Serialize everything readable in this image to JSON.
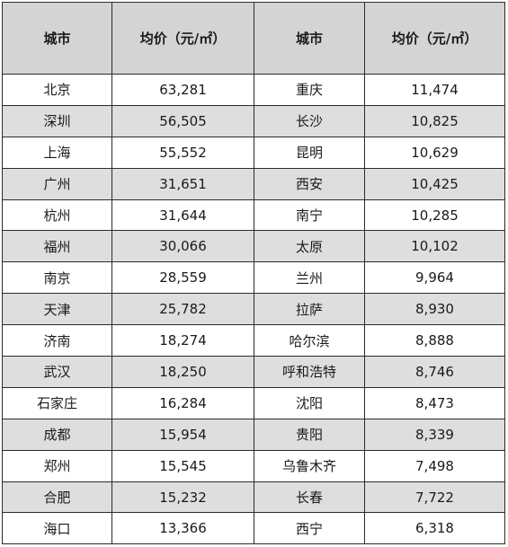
{
  "table": {
    "headers": [
      "城市",
      "均价（元/㎡）",
      "城市",
      "均价（元/㎡）"
    ],
    "rows": [
      [
        "北京",
        "63,281",
        "重庆",
        "11,474"
      ],
      [
        "深圳",
        "56,505",
        "长沙",
        "10,825"
      ],
      [
        "上海",
        "55,552",
        "昆明",
        "10,629"
      ],
      [
        "广州",
        "31,651",
        "西安",
        "10,425"
      ],
      [
        "杭州",
        "31,644",
        "南宁",
        "10,285"
      ],
      [
        "福州",
        "30,066",
        "太原",
        "10,102"
      ],
      [
        "南京",
        "28,559",
        "兰州",
        "9,964"
      ],
      [
        "天津",
        "25,782",
        "拉萨",
        "8,930"
      ],
      [
        "济南",
        "18,274",
        "哈尔滨",
        "8,888"
      ],
      [
        "武汉",
        "18,250",
        "呼和浩特",
        "8,746"
      ],
      [
        "石家庄",
        "16,284",
        "沈阳",
        "8,473"
      ],
      [
        "成都",
        "15,954",
        "贵阳",
        "8,339"
      ],
      [
        "郑州",
        "15,545",
        "乌鲁木齐",
        "7,498"
      ],
      [
        "合肥",
        "15,232",
        "长春",
        "7,722"
      ],
      [
        "海口",
        "13,366",
        "西宁",
        "6,318"
      ]
    ]
  },
  "colors": {
    "header_bg": "#d4d4d4",
    "shaded_row_bg": "#dedede",
    "plain_row_bg": "#ffffff",
    "border": "#2b2b2b"
  }
}
